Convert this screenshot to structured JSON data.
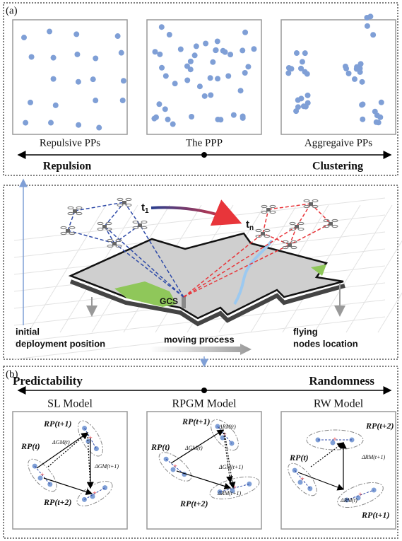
{
  "panel_a": {
    "label": "(a)",
    "patterns": [
      "Repulsive PPs",
      "The PPP",
      "Aggregaive PPs"
    ],
    "axis": {
      "left": "Repulsion",
      "right": "Clustering"
    }
  },
  "scenario": {
    "times": [
      {
        "base": "t",
        "sub": "1"
      },
      {
        "base": "t",
        "sub": "n"
      }
    ],
    "gcs": "GCS",
    "initial": [
      "initial",
      "deployment position"
    ],
    "moving": "moving process",
    "flying": [
      "flying",
      "nodes location"
    ]
  },
  "panel_b": {
    "label": "(b)",
    "axis": {
      "left": "Predictability",
      "right": "Randomness"
    },
    "models": [
      {
        "title": "SL Model",
        "labels": [
          "RP(t+1)",
          "ΔGM(t)",
          "RP(t)",
          "ΔGM(t+1)",
          "RP(t+2)"
        ]
      },
      {
        "title": "RPGM Model",
        "labels": [
          "RP(t+1)",
          "ΔRM(t)",
          "RP(t)",
          "ΔGM(t)",
          "ΔGM(t+1)",
          "ΔRM(t+1)",
          "RP(t+2)"
        ]
      },
      {
        "title": "RW Model",
        "labels": [
          "RP(t+2)",
          "ΔRM(t+1)",
          "RP(t)",
          "ΔRM(t)",
          "RP(t+1)"
        ]
      }
    ]
  }
}
